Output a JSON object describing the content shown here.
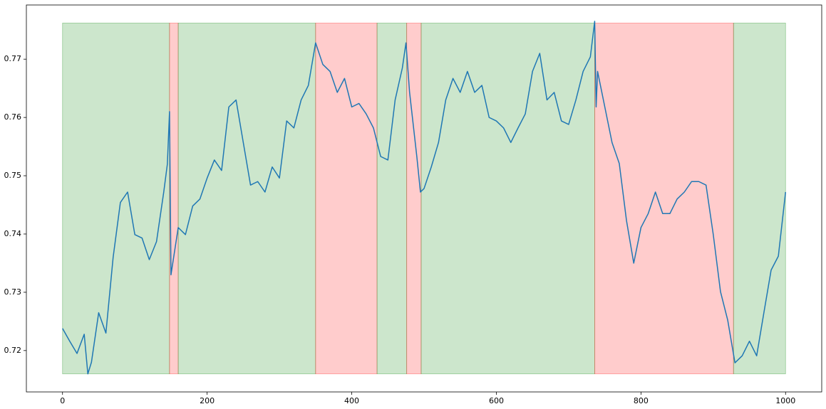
{
  "chart_data": {
    "type": "line",
    "xlim": [
      -50,
      1050
    ],
    "ylim": [
      0.7129,
      0.7793
    ],
    "xticks": [
      0,
      200,
      400,
      600,
      800,
      1000
    ],
    "yticks": [
      0.72,
      0.73,
      0.74,
      0.75,
      0.76,
      0.77
    ],
    "spans": [
      {
        "start": 0,
        "end": 148,
        "y0": 0.716,
        "y1": 0.7762,
        "color": "#008000"
      },
      {
        "start": 148,
        "end": 160,
        "y0": 0.716,
        "y1": 0.7762,
        "color": "#ff0000"
      },
      {
        "start": 160,
        "end": 350,
        "y0": 0.716,
        "y1": 0.7762,
        "color": "#008000"
      },
      {
        "start": 350,
        "end": 435,
        "y0": 0.716,
        "y1": 0.7762,
        "color": "#ff0000"
      },
      {
        "start": 435,
        "end": 476,
        "y0": 0.716,
        "y1": 0.7762,
        "color": "#008000"
      },
      {
        "start": 476,
        "end": 496,
        "y0": 0.716,
        "y1": 0.7762,
        "color": "#ff0000"
      },
      {
        "start": 496,
        "end": 736,
        "y0": 0.716,
        "y1": 0.7762,
        "color": "#008000"
      },
      {
        "start": 736,
        "end": 928,
        "y0": 0.716,
        "y1": 0.7762,
        "color": "#ff0000"
      },
      {
        "start": 928,
        "end": 1000,
        "y0": 0.716,
        "y1": 0.7762,
        "color": "#008000"
      }
    ],
    "series": [
      {
        "color": "#1f77b4",
        "x": [
          0,
          10,
          20,
          30,
          35,
          40,
          50,
          60,
          70,
          80,
          90,
          100,
          110,
          120,
          130,
          140,
          145,
          148,
          150,
          160,
          170,
          180,
          190,
          200,
          210,
          220,
          230,
          240,
          250,
          260,
          270,
          280,
          290,
          300,
          310,
          320,
          330,
          340,
          350,
          360,
          370,
          380,
          390,
          400,
          410,
          420,
          430,
          440,
          450,
          460,
          470,
          475,
          480,
          490,
          495,
          500,
          510,
          520,
          530,
          540,
          550,
          560,
          570,
          580,
          590,
          600,
          610,
          620,
          630,
          640,
          650,
          660,
          670,
          680,
          690,
          700,
          710,
          720,
          730,
          736,
          738,
          740,
          750,
          760,
          770,
          780,
          790,
          800,
          810,
          820,
          830,
          840,
          850,
          860,
          870,
          880,
          890,
          900,
          910,
          920,
          930,
          940,
          950,
          960,
          970,
          980,
          990,
          1000
        ],
        "values": [
          0.7238,
          0.7216,
          0.7195,
          0.7228,
          0.716,
          0.718,
          0.7265,
          0.723,
          0.736,
          0.7454,
          0.7472,
          0.7399,
          0.7393,
          0.7356,
          0.7387,
          0.7472,
          0.752,
          0.761,
          0.733,
          0.7411,
          0.7399,
          0.7448,
          0.746,
          0.7496,
          0.7527,
          0.7509,
          0.7618,
          0.763,
          0.7557,
          0.7484,
          0.749,
          0.7472,
          0.7515,
          0.7496,
          0.7594,
          0.7582,
          0.763,
          0.7655,
          0.7728,
          0.7691,
          0.7679,
          0.7643,
          0.7667,
          0.7618,
          0.7624,
          0.7606,
          0.7582,
          0.7533,
          0.7527,
          0.763,
          0.7685,
          0.7728,
          0.7643,
          0.7533,
          0.7472,
          0.7478,
          0.7515,
          0.7557,
          0.763,
          0.7667,
          0.7643,
          0.7679,
          0.7643,
          0.7655,
          0.76,
          0.7594,
          0.7582,
          0.7557,
          0.7582,
          0.7606,
          0.7679,
          0.771,
          0.763,
          0.7643,
          0.7594,
          0.7588,
          0.763,
          0.7679,
          0.7704,
          0.7765,
          0.7618,
          0.7679,
          0.7618,
          0.7557,
          0.7521,
          0.7423,
          0.735,
          0.7411,
          0.7435,
          0.7472,
          0.7435,
          0.7435,
          0.746,
          0.7472,
          0.749,
          0.749,
          0.7484,
          0.7399,
          0.7301,
          0.7252,
          0.7179,
          0.7191,
          0.7216,
          0.7191,
          0.7265,
          0.7338,
          0.7362,
          0.7472
        ]
      }
    ]
  }
}
